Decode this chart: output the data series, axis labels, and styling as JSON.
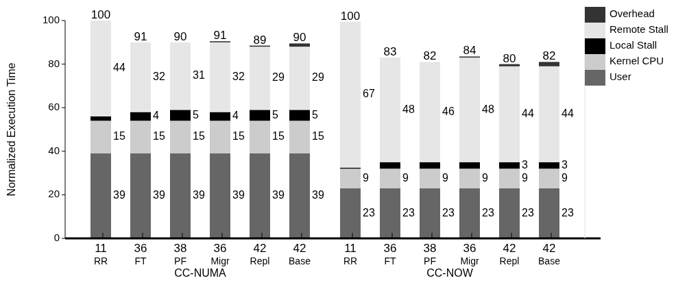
{
  "chart_data": {
    "type": "bar",
    "stacked": true,
    "ylabel": "Normalized Execution Time",
    "ylim": [
      0,
      100
    ],
    "yticks": [
      0,
      20,
      40,
      60,
      80,
      100
    ],
    "legend": "top right",
    "categories": [
      "11\nRR",
      "36\nFT",
      "38\nPF",
      "36\nMigr",
      "42\nRepl",
      "42\nBase",
      "11\nRR",
      "36\nFT",
      "38\nPF",
      "36\nMigr",
      "42\nRepl",
      "42\nBase"
    ],
    "annotations": [
      "CC-NUMA",
      "CC-NOW"
    ],
    "series": [
      {
        "name": "User",
        "color": "#666666",
        "values": [
          39,
          39,
          39,
          39,
          39,
          39,
          23,
          23,
          23,
          23,
          23,
          23
        ],
        "value_labels": [
          "39",
          "39",
          "39",
          "39",
          "39",
          "39",
          "23",
          "23",
          "23",
          "23",
          "23",
          "23"
        ]
      },
      {
        "name": "Kernel CPU",
        "color": "#cccccc",
        "values": [
          15,
          15,
          15,
          15,
          15,
          15,
          9,
          9,
          9,
          9,
          9,
          9
        ],
        "value_labels": [
          "15",
          "15",
          "15",
          "15",
          "15",
          "15",
          "9",
          "9",
          "9",
          "9",
          "9",
          "9"
        ]
      },
      {
        "name": "Local Stall",
        "color": "#000000",
        "values": [
          2,
          4,
          5,
          4,
          5,
          5,
          0.5,
          3,
          3,
          3,
          3,
          3
        ],
        "value_labels": [
          null,
          "4",
          "5",
          "4",
          "5",
          "5",
          null,
          null,
          null,
          null,
          "3",
          "3"
        ]
      },
      {
        "name": "Remote Stall",
        "color": "#e6e6e6",
        "values": [
          44,
          32,
          31,
          32,
          29,
          29,
          67,
          48,
          46,
          48,
          44,
          44
        ],
        "value_labels": [
          "44",
          "32",
          "31",
          "32",
          "29",
          "29",
          "67",
          "48",
          "46",
          "48",
          "44",
          "44"
        ]
      },
      {
        "name": "Overhead",
        "color": "#333333",
        "values": [
          0,
          0,
          0,
          0.5,
          0.5,
          1.5,
          0,
          0,
          0,
          0.5,
          1,
          2
        ],
        "value_labels": [
          null,
          null,
          null,
          null,
          null,
          null,
          null,
          null,
          null,
          null,
          null,
          null
        ]
      }
    ],
    "totals": [
      "100",
      "91",
      "90",
      "91",
      "89",
      "90",
      "100",
      "83",
      "82",
      "84",
      "80",
      "82"
    ]
  }
}
